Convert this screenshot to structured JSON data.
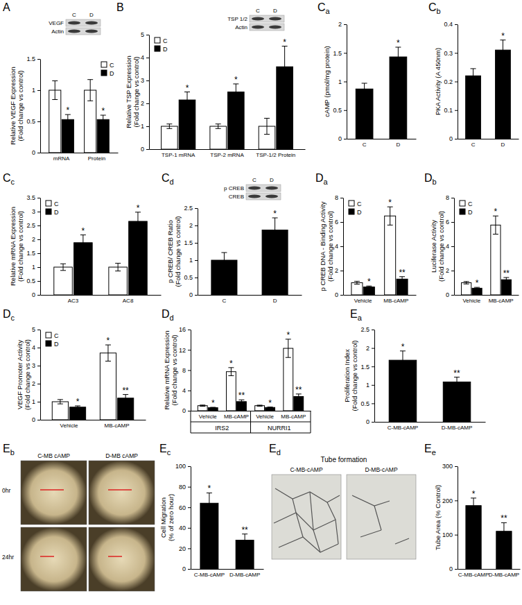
{
  "chart_data": [
    {
      "label": "A",
      "type": "bar",
      "y_label": [
        "Relative VEGF Expression",
        "(Fold change vs control)"
      ],
      "categories": [
        "mRNA",
        "Protein"
      ],
      "series": [
        {
          "name": "C",
          "color": "#ffffff",
          "values": [
            1,
            1
          ],
          "errors": [
            0.15,
            0.17
          ]
        },
        {
          "name": "D",
          "color": "#000000",
          "values": [
            0.53,
            0.53
          ],
          "errors": [
            0.08,
            0.07
          ],
          "annotations": [
            "*",
            "*"
          ]
        }
      ],
      "ylim": [
        0,
        1.5
      ],
      "yticks": [
        0,
        0.5,
        1,
        1.5
      ],
      "legend": "top-right",
      "blot": {
        "rows": [
          "VEGF",
          "Actin"
        ],
        "columns": [
          "C",
          "D"
        ]
      }
    },
    {
      "label": "B",
      "type": "bar",
      "y_label": [
        "Relative TSP Expression",
        "(Fold change vs control)"
      ],
      "categories": [
        "TSP-1 mRNA",
        "TSP-2 mRNA",
        "TSP-1/2 Protein"
      ],
      "series": [
        {
          "name": "C",
          "color": "#ffffff",
          "values": [
            1,
            1,
            1
          ],
          "errors": [
            0.1,
            0.1,
            0.35
          ]
        },
        {
          "name": "D",
          "color": "#000000",
          "values": [
            2.15,
            2.5,
            3.6
          ],
          "errors": [
            0.35,
            0.35,
            0.9
          ],
          "annotations": [
            "*",
            "*",
            "*"
          ]
        }
      ],
      "ylim": [
        0,
        5
      ],
      "yticks": [
        0,
        1,
        2,
        3,
        4,
        5
      ],
      "legend": "top-left",
      "blot": {
        "rows": [
          "TSP 1/2",
          "Actin"
        ],
        "columns": [
          "C",
          "D"
        ]
      }
    },
    {
      "label": "Ca",
      "type": "bar",
      "y_label": [
        "cAMP  (pmol/mg protein)"
      ],
      "categories": [
        "C",
        "D"
      ],
      "values": [
        0.87,
        1.43
      ],
      "errors": [
        0.1,
        0.17
      ],
      "annotations": [
        null,
        "*"
      ],
      "color": "#000000",
      "ylim": [
        0,
        2
      ],
      "yticks": [
        0,
        0.5,
        1,
        1.5,
        2
      ]
    },
    {
      "label": "Cb",
      "type": "bar",
      "y_label": [
        "PKA Activity (A 450nm)"
      ],
      "categories": [
        "C",
        "D"
      ],
      "values": [
        0.22,
        0.31
      ],
      "errors": [
        0.025,
        0.035
      ],
      "annotations": [
        null,
        "*"
      ],
      "color": "#000000",
      "ylim": [
        0,
        0.4
      ],
      "yticks": [
        0,
        0.1,
        0.2,
        0.3,
        0.4
      ]
    },
    {
      "label": "Cc",
      "type": "bar",
      "y_label": [
        "Relative mRNA Expression",
        "(Fold change vs control)"
      ],
      "categories": [
        "AC3",
        "AC8"
      ],
      "series": [
        {
          "name": "C",
          "color": "#ffffff",
          "values": [
            1,
            1
          ],
          "errors": [
            0.12,
            0.14
          ]
        },
        {
          "name": "D",
          "color": "#000000",
          "values": [
            1.88,
            2.65
          ],
          "errors": [
            0.28,
            0.33
          ],
          "annotations": [
            "*",
            "*"
          ]
        }
      ],
      "ylim": [
        0,
        3.5
      ],
      "yticks": [
        0,
        0.5,
        1,
        1.5,
        2,
        2.5,
        3,
        3.5
      ],
      "legend": "top-left"
    },
    {
      "label": "Cd",
      "type": "bar",
      "y_label": [
        "p CREB/ CREB Ratio",
        "(Fold change vs control)"
      ],
      "categories": [
        "C",
        "D"
      ],
      "values": [
        1,
        1.87
      ],
      "errors": [
        0.22,
        0.35
      ],
      "annotations": [
        null,
        "*"
      ],
      "color": "#000000",
      "ylim": [
        0,
        2.5
      ],
      "yticks": [
        0,
        0.5,
        1,
        1.5,
        2,
        2.5
      ],
      "blot": {
        "rows": [
          "p CREB",
          "CREB"
        ],
        "columns": [
          "C",
          "D"
        ]
      }
    },
    {
      "label": "Da",
      "type": "bar",
      "y_label": [
        "p CREB  DNA - Binding Activity",
        "(Fold change vs control)"
      ],
      "categories": [
        "Vehicle",
        "MB-cAMP"
      ],
      "series": [
        {
          "name": "C",
          "color": "#ffffff",
          "values": [
            1,
            6.5
          ],
          "errors": [
            0.12,
            0.75
          ],
          "annotations": [
            null,
            "*"
          ]
        },
        {
          "name": "D",
          "color": "#000000",
          "values": [
            0.65,
            1.3
          ],
          "errors": [
            0.08,
            0.2
          ],
          "annotations": [
            "*",
            "**"
          ]
        }
      ],
      "ylim": [
        0,
        8
      ],
      "yticks": [
        0,
        2,
        4,
        6,
        8
      ],
      "legend": "top-left"
    },
    {
      "label": "Db",
      "type": "bar",
      "y_label": [
        "Luciferase Activity",
        "(Fold change vs control)"
      ],
      "categories": [
        "Vehicle",
        "MB-cAMP"
      ],
      "series": [
        {
          "name": "C",
          "color": "#ffffff",
          "values": [
            1,
            5.75
          ],
          "errors": [
            0.1,
            0.75
          ],
          "annotations": [
            null,
            "*"
          ]
        },
        {
          "name": "D",
          "color": "#000000",
          "values": [
            0.55,
            1.25
          ],
          "errors": [
            0.07,
            0.18
          ],
          "annotations": [
            "*",
            "**"
          ]
        }
      ],
      "ylim": [
        0,
        8
      ],
      "yticks": [
        0,
        2,
        4,
        6,
        8
      ],
      "legend": "top-left"
    },
    {
      "label": "Dc",
      "type": "bar",
      "y_label": [
        "VEGF Promoter Activity",
        "(Fold change vs control)"
      ],
      "categories": [
        "Vehicle",
        "MB-cAMP"
      ],
      "series": [
        {
          "name": "C",
          "color": "#ffffff",
          "values": [
            1,
            3.7
          ],
          "errors": [
            0.12,
            0.45
          ],
          "annotations": [
            null,
            "*"
          ]
        },
        {
          "name": "D",
          "color": "#000000",
          "values": [
            0.7,
            1.2
          ],
          "errors": [
            0.07,
            0.2
          ],
          "annotations": [
            "*",
            "**"
          ]
        }
      ],
      "ylim": [
        0,
        5
      ],
      "yticks": [
        0,
        1,
        2,
        3,
        4,
        5
      ],
      "legend": "top-left"
    },
    {
      "label": "Dd",
      "type": "bar",
      "y_label": [
        "Relative mRNA Expression",
        "(Fold change vs control)"
      ],
      "categories": [
        "Vehicle",
        "MB-cAMP",
        "Vehicle",
        "MB-cAMP"
      ],
      "groups": [
        "IRS2",
        "NURRI1"
      ],
      "series": [
        {
          "name": "C",
          "color": "#ffffff",
          "values": [
            1,
            7.7,
            1,
            12.3
          ],
          "errors": [
            0.12,
            0.8,
            0.1,
            1.8
          ],
          "annotations": [
            null,
            "*",
            null,
            "*"
          ]
        },
        {
          "name": "D",
          "color": "#000000",
          "values": [
            0.6,
            1.8,
            0.65,
            2.8
          ],
          "errors": [
            0.08,
            0.35,
            0.08,
            0.5
          ],
          "annotations": [
            "*",
            "**",
            "*",
            "**"
          ]
        }
      ],
      "ylim": [
        0,
        16
      ],
      "yticks": [
        0,
        4,
        8,
        12,
        16
      ]
    },
    {
      "label": "Ea",
      "type": "bar",
      "y_label": [
        "Proliferation Index",
        "(Fold change vs control)"
      ],
      "categories": [
        "C-MB-cAMP",
        "D-MB-cAMP"
      ],
      "values": [
        1.67,
        1.08
      ],
      "errors": [
        0.25,
        0.13
      ],
      "annotations": [
        "*",
        "**"
      ],
      "color": "#000000",
      "ylim": [
        0,
        2.5
      ],
      "yticks": [
        0,
        0.5,
        1,
        1.5,
        2,
        2.5
      ]
    },
    {
      "label": "Ec",
      "type": "bar",
      "y_label": [
        "Cell Migration",
        "(% of  zero hour)"
      ],
      "categories": [
        "C-MB-cAMP",
        "D-MB-cAMP"
      ],
      "values": [
        64,
        28
      ],
      "errors": [
        10,
        6
      ],
      "annotations": [
        "*",
        "**"
      ],
      "color": "#000000",
      "ylim": [
        0,
        100
      ],
      "yticks": [
        0,
        20,
        40,
        60,
        80,
        100
      ]
    },
    {
      "label": "Ee",
      "type": "bar",
      "y_label": [
        "Tube Area (% Control)"
      ],
      "categories": [
        "C-MB-cAMP",
        "D-MB-cAMP"
      ],
      "values": [
        185,
        110
      ],
      "errors": [
        22,
        25
      ],
      "annotations": [
        "*",
        "**"
      ],
      "color": "#000000",
      "ylim": [
        0,
        300
      ],
      "yticks": [
        0,
        100,
        200,
        300
      ]
    }
  ],
  "photo_panels": [
    {
      "label": "Eb",
      "columns": [
        "C-MB cAMP",
        "D-MB cAMP"
      ],
      "rows": [
        "0hr",
        "24hr"
      ]
    },
    {
      "label": "Ed",
      "title": "Tube formation",
      "columns": [
        "C-MB-cAMP",
        "D-MB-cAMP"
      ]
    }
  ]
}
